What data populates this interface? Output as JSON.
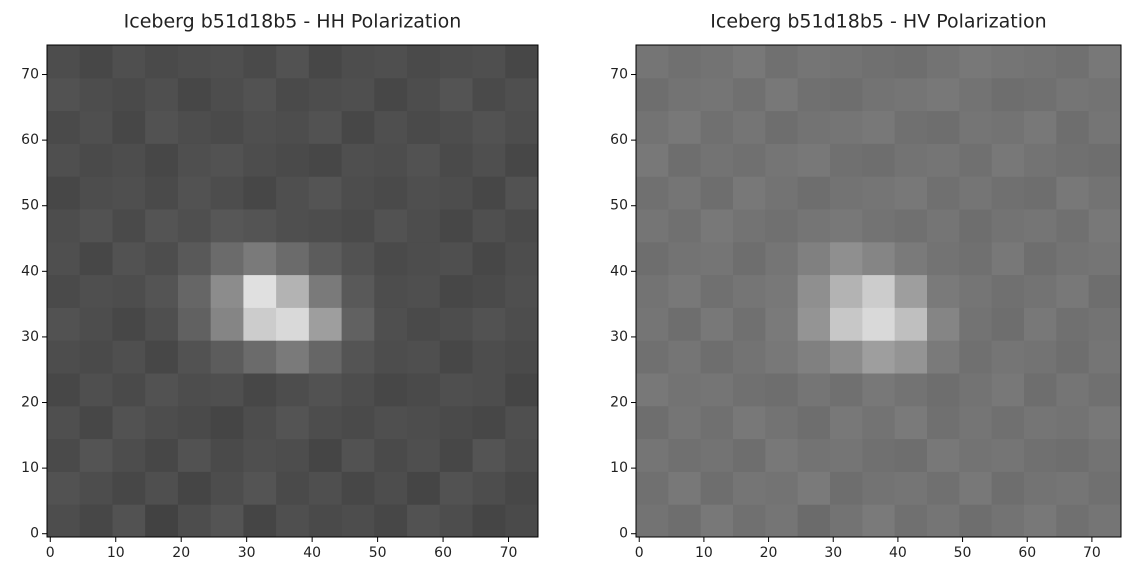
{
  "chart_data": [
    {
      "type": "heatmap",
      "title": "Iceberg b51d18b5 - HH Polarization",
      "colormap": "gray",
      "clim": [
        0,
        100
      ],
      "x_edges": [
        -0.5,
        4.5,
        9.5,
        14.5,
        19.5,
        24.5,
        29.5,
        34.5,
        39.5,
        44.5,
        49.5,
        54.5,
        59.5,
        64.5,
        69.5,
        74.5
      ],
      "y_edges": [
        -0.5,
        4.5,
        9.5,
        14.5,
        19.5,
        24.5,
        29.5,
        34.5,
        39.5,
        44.5,
        49.5,
        54.5,
        59.5,
        64.5,
        69.5,
        74.5
      ],
      "xlim": [
        -0.5,
        74.5
      ],
      "ylim": [
        -0.5,
        74.5
      ],
      "xticks": [
        0,
        10,
        20,
        30,
        40,
        50,
        60,
        70
      ],
      "yticks": [
        0,
        10,
        20,
        30,
        40,
        50,
        60,
        70
      ],
      "z": [
        [
          30,
          28,
          32,
          26,
          30,
          33,
          27,
          31,
          29,
          30,
          28,
          32,
          30,
          27,
          29
        ],
        [
          32,
          30,
          28,
          31,
          27,
          30,
          33,
          29,
          31,
          28,
          30,
          27,
          32,
          30,
          28
        ],
        [
          29,
          33,
          30,
          28,
          32,
          29,
          31,
          30,
          27,
          32,
          29,
          31,
          28,
          33,
          30
        ],
        [
          31,
          28,
          32,
          30,
          29,
          27,
          30,
          33,
          30,
          29,
          31,
          30,
          29,
          28,
          31
        ],
        [
          28,
          31,
          29,
          32,
          30,
          31,
          28,
          30,
          32,
          30,
          28,
          29,
          31,
          30,
          27
        ],
        [
          30,
          29,
          31,
          28,
          32,
          36,
          42,
          48,
          40,
          33,
          30,
          31,
          28,
          30,
          29
        ],
        [
          32,
          30,
          28,
          31,
          38,
          52,
          80,
          85,
          62,
          38,
          31,
          29,
          30,
          32,
          30
        ],
        [
          29,
          31,
          30,
          33,
          40,
          55,
          88,
          70,
          48,
          35,
          30,
          31,
          28,
          29,
          31
        ],
        [
          31,
          28,
          32,
          30,
          35,
          42,
          48,
          42,
          36,
          32,
          29,
          30,
          31,
          28,
          30
        ],
        [
          30,
          32,
          29,
          33,
          31,
          34,
          33,
          31,
          30,
          29,
          32,
          30,
          28,
          31,
          29
        ],
        [
          28,
          30,
          31,
          29,
          32,
          30,
          28,
          31,
          33,
          30,
          29,
          31,
          30,
          28,
          32
        ],
        [
          31,
          29,
          30,
          28,
          31,
          32,
          30,
          29,
          28,
          31,
          30,
          32,
          29,
          31,
          28
        ],
        [
          29,
          31,
          28,
          32,
          30,
          29,
          31,
          30,
          32,
          28,
          31,
          29,
          30,
          32,
          30
        ],
        [
          32,
          30,
          29,
          31,
          28,
          30,
          32,
          29,
          30,
          31,
          28,
          30,
          33,
          29,
          31
        ],
        [
          30,
          28,
          31,
          29,
          30,
          31,
          29,
          32,
          28,
          30,
          31,
          29,
          30,
          31,
          28
        ]
      ]
    },
    {
      "type": "heatmap",
      "title": "Iceberg b51d18b5 - HV Polarization",
      "colormap": "gray",
      "clim": [
        0,
        100
      ],
      "x_edges": [
        -0.5,
        4.5,
        9.5,
        14.5,
        19.5,
        24.5,
        29.5,
        34.5,
        39.5,
        44.5,
        49.5,
        54.5,
        59.5,
        64.5,
        69.5,
        74.5
      ],
      "y_edges": [
        -0.5,
        4.5,
        9.5,
        14.5,
        19.5,
        24.5,
        29.5,
        34.5,
        39.5,
        44.5,
        49.5,
        54.5,
        59.5,
        64.5,
        69.5,
        74.5
      ],
      "xlim": [
        -0.5,
        74.5
      ],
      "ylim": [
        -0.5,
        74.5
      ],
      "xticks": [
        0,
        10,
        20,
        30,
        40,
        50,
        60,
        70
      ],
      "yticks": [
        0,
        10,
        20,
        30,
        40,
        50,
        60,
        70
      ],
      "z": [
        [
          45,
          43,
          47,
          44,
          46,
          42,
          45,
          48,
          44,
          46,
          43,
          45,
          47,
          44,
          46
        ],
        [
          44,
          47,
          43,
          46,
          45,
          48,
          43,
          45,
          46,
          44,
          47,
          43,
          45,
          46,
          44
        ],
        [
          46,
          44,
          45,
          43,
          47,
          45,
          46,
          44,
          43,
          47,
          45,
          46,
          44,
          43,
          45
        ],
        [
          43,
          46,
          44,
          47,
          45,
          43,
          47,
          45,
          48,
          44,
          46,
          44,
          46,
          45,
          47
        ],
        [
          47,
          45,
          46,
          44,
          43,
          46,
          44,
          47,
          45,
          43,
          45,
          47,
          43,
          46,
          44
        ],
        [
          44,
          46,
          43,
          45,
          47,
          50,
          55,
          62,
          58,
          48,
          44,
          46,
          45,
          43,
          46
        ],
        [
          46,
          43,
          47,
          44,
          48,
          58,
          78,
          85,
          75,
          52,
          45,
          43,
          47,
          44,
          45
        ],
        [
          45,
          47,
          44,
          46,
          47,
          56,
          70,
          80,
          62,
          48,
          46,
          44,
          45,
          47,
          43
        ],
        [
          43,
          45,
          46,
          43,
          46,
          50,
          56,
          52,
          48,
          45,
          44,
          47,
          43,
          45,
          46
        ],
        [
          46,
          44,
          47,
          45,
          44,
          46,
          47,
          45,
          44,
          46,
          43,
          45,
          46,
          44,
          47
        ],
        [
          44,
          46,
          43,
          47,
          45,
          43,
          45,
          46,
          47,
          44,
          46,
          44,
          43,
          47,
          45
        ],
        [
          47,
          43,
          45,
          44,
          46,
          47,
          44,
          43,
          45,
          46,
          44,
          47,
          45,
          44,
          43
        ],
        [
          45,
          47,
          44,
          46,
          43,
          45,
          46,
          47,
          44,
          43,
          46,
          45,
          47,
          43,
          46
        ],
        [
          43,
          45,
          46,
          44,
          47,
          44,
          43,
          45,
          46,
          47,
          45,
          43,
          44,
          46,
          45
        ],
        [
          46,
          44,
          45,
          47,
          44,
          46,
          45,
          44,
          43,
          45,
          47,
          46,
          45,
          44,
          47
        ]
      ]
    }
  ]
}
